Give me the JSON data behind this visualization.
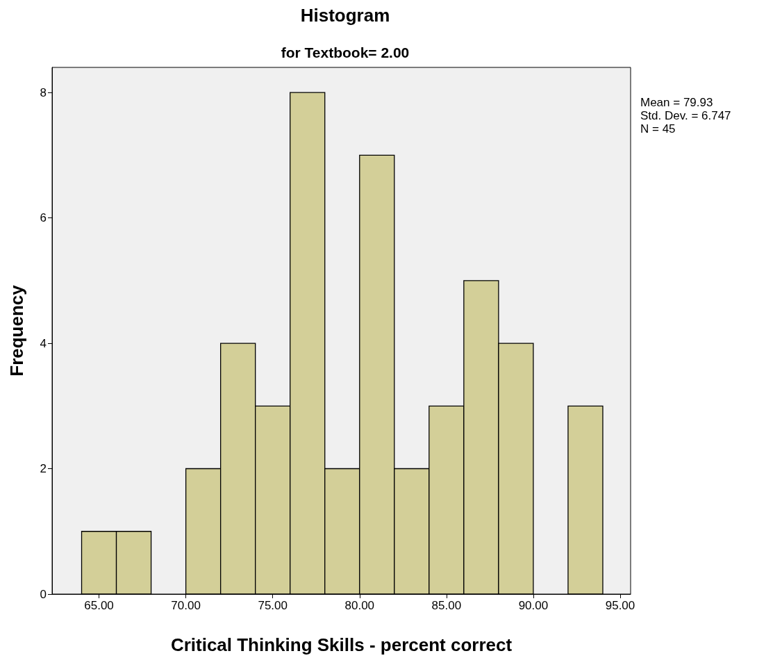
{
  "chart_data": {
    "type": "histogram",
    "title": "Histogram",
    "subtitle": "for Textbook= 2.00",
    "xlabel": "Critical Thinking Skills - percent correct",
    "ylabel": "Frequency",
    "bins": [
      64,
      66,
      68,
      70,
      72,
      74,
      76,
      78,
      80,
      82,
      84,
      86,
      88,
      90,
      92,
      94
    ],
    "values": [
      1,
      1,
      0,
      2,
      4,
      3,
      8,
      2,
      7,
      2,
      3,
      5,
      4,
      0,
      3
    ],
    "color": "#d3cf98",
    "xlim": [
      62.3,
      95.6
    ],
    "xticks": [
      {
        "value": 65,
        "label": "65.00"
      },
      {
        "value": 70,
        "label": "70.00"
      },
      {
        "value": 75,
        "label": "75.00"
      },
      {
        "value": 80,
        "label": "80.00"
      },
      {
        "value": 85,
        "label": "85.00"
      },
      {
        "value": 90,
        "label": "90.00"
      },
      {
        "value": 95,
        "label": "95.00"
      }
    ],
    "ylim": [
      0,
      8.4
    ],
    "yticks": [
      0,
      2,
      4,
      6,
      8
    ],
    "annotations": [
      "Mean = 79.93",
      "Std. Dev. = 6.747",
      "N = 45"
    ],
    "grid": false
  }
}
